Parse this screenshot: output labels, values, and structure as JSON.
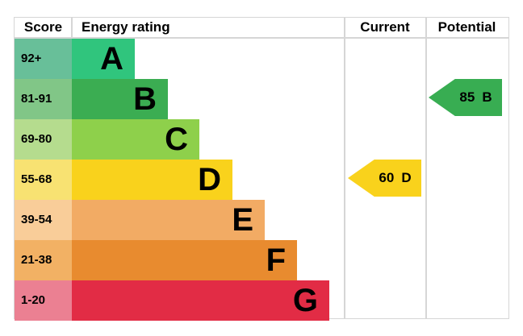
{
  "header": {
    "score": "Score",
    "energy_rating": "Energy rating",
    "current": "Current",
    "potential": "Potential"
  },
  "chart_data": {
    "type": "bar",
    "subtype": "epc-energy-efficiency-rating",
    "orientation": "horizontal-stepped",
    "columns": [
      "Score",
      "Energy rating",
      "Current",
      "Potential"
    ],
    "bands": [
      {
        "letter": "A",
        "score_range": "92+",
        "color": "#30c57d",
        "score_tint": "#68bf99"
      },
      {
        "letter": "B",
        "score_range": "81-91",
        "color": "#3bad52",
        "score_tint": "#81c687"
      },
      {
        "letter": "C",
        "score_range": "69-80",
        "color": "#8ed04b",
        "score_tint": "#b5dc8e"
      },
      {
        "letter": "D",
        "score_range": "55-68",
        "color": "#f9d21c",
        "score_tint": "#f8e272"
      },
      {
        "letter": "E",
        "score_range": "39-54",
        "color": "#f2ab64",
        "score_tint": "#f9cd99"
      },
      {
        "letter": "F",
        "score_range": "21-38",
        "color": "#e88b2f",
        "score_tint": "#f2b164"
      },
      {
        "letter": "G",
        "score_range": "1-20",
        "color": "#e22c45",
        "score_tint": "#eb8092"
      }
    ],
    "current": {
      "value": "60",
      "band": "D",
      "color": "#f9d21c"
    },
    "potential": {
      "value": "85",
      "band": "B",
      "color": "#38ad52"
    }
  },
  "gridline_color": "#d6d6d6"
}
